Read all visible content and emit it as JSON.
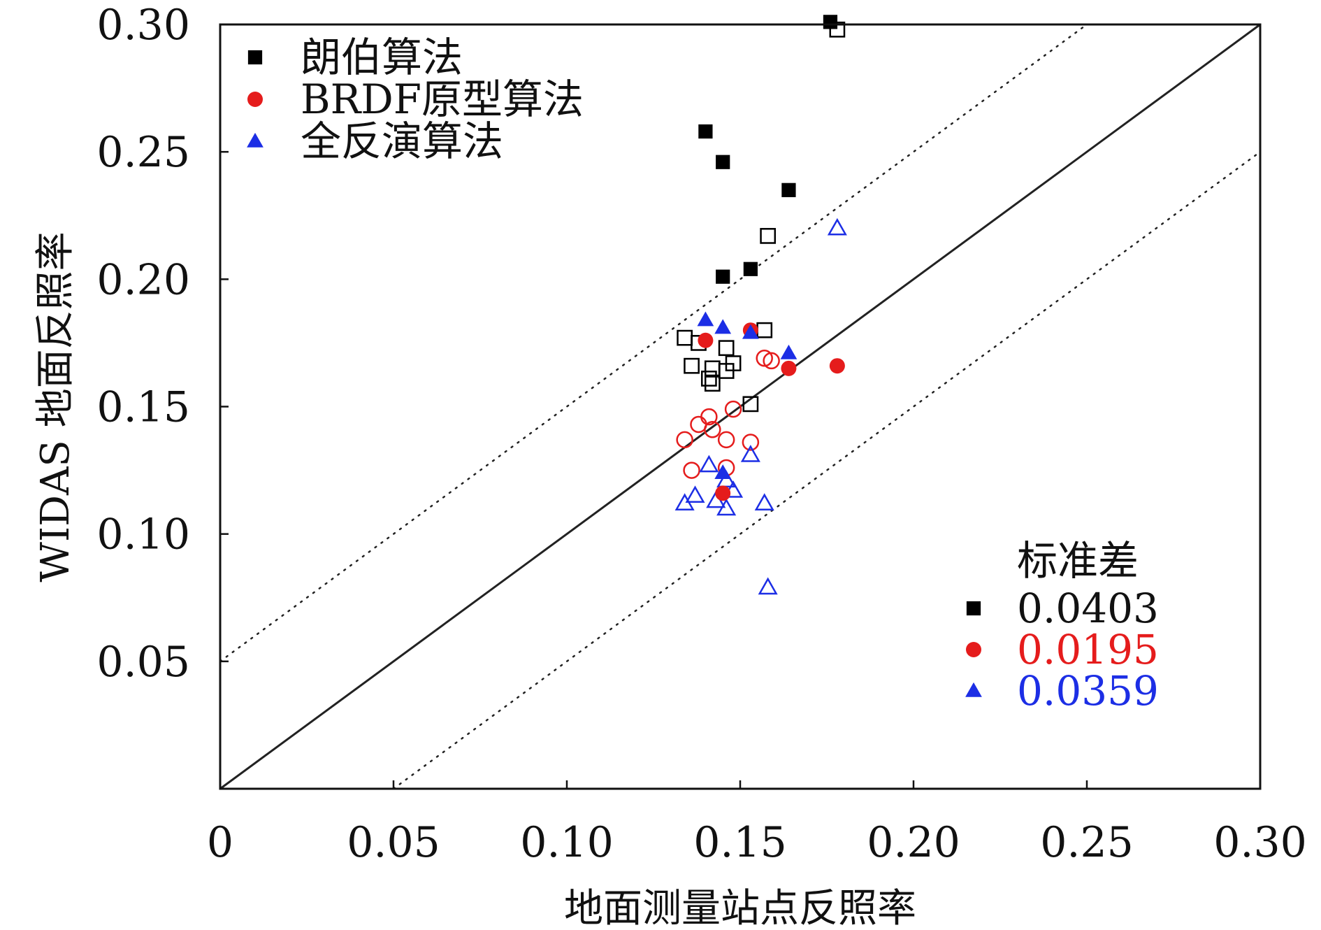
{
  "chart_data": {
    "type": "scatter",
    "title": "",
    "xlabel": "地面测量站点反照率",
    "ylabel": "WIDAS 地面反照率",
    "xlim": [
      0,
      0.3
    ],
    "ylim": [
      0,
      0.3
    ],
    "x_ticks": [
      "0",
      "0.05",
      "0.10",
      "0.15",
      "0.20",
      "0.25",
      "0.30"
    ],
    "y_ticks": [
      "0.05",
      "0.10",
      "0.15",
      "0.20",
      "0.25",
      "0.30"
    ],
    "reference_lines": [
      {
        "name": "1:1",
        "style": "solid",
        "intercept": 0.0,
        "slope": 1
      },
      {
        "name": "upper-bound",
        "style": "dotted",
        "intercept": 0.05,
        "slope": 1
      },
      {
        "name": "lower-bound",
        "style": "dotted",
        "intercept": -0.05,
        "slope": 1
      }
    ],
    "legend": {
      "position": "top-left",
      "entries": [
        {
          "label": "朗伯算法",
          "marker": "square",
          "color": "#000000"
        },
        {
          "label": "BRDF原型算法",
          "marker": "circle",
          "color": "#e51c1c"
        },
        {
          "label": "全反演算法",
          "marker": "triangle",
          "color": "#1c2ee5"
        }
      ]
    },
    "stats": {
      "title": "标准差",
      "position": "bottom-right",
      "entries": [
        {
          "value": "0.0403",
          "marker": "square",
          "color": "#000000"
        },
        {
          "value": "0.0195",
          "marker": "circle",
          "color": "#e51c1c"
        },
        {
          "value": "0.0359",
          "marker": "triangle",
          "color": "#1c2ee5"
        }
      ]
    },
    "series": [
      {
        "name": "朗伯算法",
        "marker": "square",
        "color": "#000000",
        "filled": [
          {
            "x": 0.14,
            "y": 0.258
          },
          {
            "x": 0.145,
            "y": 0.246
          },
          {
            "x": 0.164,
            "y": 0.235
          },
          {
            "x": 0.145,
            "y": 0.201
          },
          {
            "x": 0.153,
            "y": 0.204
          },
          {
            "x": 0.176,
            "y": 0.301
          }
        ],
        "hollow": [
          {
            "x": 0.178,
            "y": 0.298
          },
          {
            "x": 0.158,
            "y": 0.217
          },
          {
            "x": 0.157,
            "y": 0.18
          },
          {
            "x": 0.134,
            "y": 0.177
          },
          {
            "x": 0.138,
            "y": 0.175
          },
          {
            "x": 0.146,
            "y": 0.173
          },
          {
            "x": 0.136,
            "y": 0.166
          },
          {
            "x": 0.142,
            "y": 0.165
          },
          {
            "x": 0.148,
            "y": 0.167
          },
          {
            "x": 0.141,
            "y": 0.161
          },
          {
            "x": 0.142,
            "y": 0.159
          },
          {
            "x": 0.153,
            "y": 0.151
          },
          {
            "x": 0.146,
            "y": 0.164
          }
        ]
      },
      {
        "name": "BRDF原型算法",
        "marker": "circle",
        "color": "#e51c1c",
        "filled": [
          {
            "x": 0.14,
            "y": 0.176
          },
          {
            "x": 0.153,
            "y": 0.18
          },
          {
            "x": 0.164,
            "y": 0.165
          },
          {
            "x": 0.178,
            "y": 0.166
          },
          {
            "x": 0.145,
            "y": 0.116
          }
        ],
        "hollow": [
          {
            "x": 0.157,
            "y": 0.169
          },
          {
            "x": 0.159,
            "y": 0.168
          },
          {
            "x": 0.141,
            "y": 0.146
          },
          {
            "x": 0.148,
            "y": 0.149
          },
          {
            "x": 0.138,
            "y": 0.143
          },
          {
            "x": 0.142,
            "y": 0.141
          },
          {
            "x": 0.134,
            "y": 0.137
          },
          {
            "x": 0.146,
            "y": 0.137
          },
          {
            "x": 0.153,
            "y": 0.136
          },
          {
            "x": 0.136,
            "y": 0.125
          },
          {
            "x": 0.146,
            "y": 0.126
          }
        ]
      },
      {
        "name": "全反演算法",
        "marker": "triangle",
        "color": "#1c2ee5",
        "filled": [
          {
            "x": 0.14,
            "y": 0.184
          },
          {
            "x": 0.145,
            "y": 0.181
          },
          {
            "x": 0.153,
            "y": 0.179
          },
          {
            "x": 0.164,
            "y": 0.171
          },
          {
            "x": 0.145,
            "y": 0.124
          }
        ],
        "hollow": [
          {
            "x": 0.178,
            "y": 0.22
          },
          {
            "x": 0.153,
            "y": 0.131
          },
          {
            "x": 0.141,
            "y": 0.127
          },
          {
            "x": 0.146,
            "y": 0.121
          },
          {
            "x": 0.148,
            "y": 0.117
          },
          {
            "x": 0.137,
            "y": 0.115
          },
          {
            "x": 0.143,
            "y": 0.113
          },
          {
            "x": 0.134,
            "y": 0.112
          },
          {
            "x": 0.157,
            "y": 0.112
          },
          {
            "x": 0.146,
            "y": 0.11
          },
          {
            "x": 0.158,
            "y": 0.079
          }
        ]
      }
    ]
  }
}
